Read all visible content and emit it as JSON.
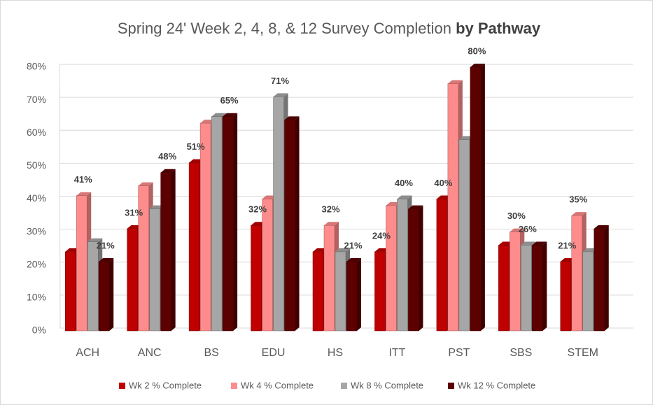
{
  "chart_data": {
    "type": "bar3d",
    "title": "Spring 24' Week 2, 4, 8, & 12 Survey Completion",
    "title_emphasis": "by Pathway",
    "categories": [
      "ACH",
      "ANC",
      "BS",
      "EDU",
      "HS",
      "ITT",
      "PST",
      "SBS",
      "STEM"
    ],
    "series": [
      {
        "name": "Wk 2 % Complete",
        "color": "#c00000",
        "values": [
          24,
          31,
          51,
          32,
          24,
          24,
          40,
          26,
          21
        ],
        "value_labels": [
          null,
          "31%",
          "51%",
          "32%",
          null,
          "24%",
          "40%",
          null,
          "21%"
        ]
      },
      {
        "name": "Wk 4 % Complete",
        "color": "#ff8c8c",
        "values": [
          41,
          44,
          63,
          40,
          32,
          38,
          75,
          30,
          35
        ],
        "value_labels": [
          "41%",
          null,
          null,
          null,
          "32%",
          null,
          null,
          "30%",
          "35%"
        ]
      },
      {
        "name": "Wk 8 % Complete",
        "color": "#a6a6a6",
        "values": [
          27,
          37,
          65,
          71,
          24,
          40,
          58,
          26,
          24
        ],
        "value_labels": [
          null,
          null,
          null,
          "71%",
          null,
          "40%",
          null,
          "26%",
          null
        ]
      },
      {
        "name": "Wk 12 % Complete",
        "color": "#5c0000",
        "values": [
          21,
          48,
          65,
          64,
          21,
          37,
          80,
          26,
          31
        ],
        "value_labels": [
          "21%",
          "48%",
          "65%",
          null,
          "21%",
          null,
          "80%",
          null,
          null
        ]
      }
    ],
    "ylim": [
      0,
      80
    ],
    "yticks": [
      {
        "value": 0,
        "label": "0%"
      },
      {
        "value": 10,
        "label": "10%"
      },
      {
        "value": 20,
        "label": "20%"
      },
      {
        "value": 30,
        "label": "30%"
      },
      {
        "value": 40,
        "label": "40%"
      },
      {
        "value": 50,
        "label": "50%"
      },
      {
        "value": 60,
        "label": "60%"
      },
      {
        "value": 70,
        "label": "70%"
      },
      {
        "value": 80,
        "label": "80%"
      }
    ],
    "grid": true,
    "legend": "bottom"
  }
}
